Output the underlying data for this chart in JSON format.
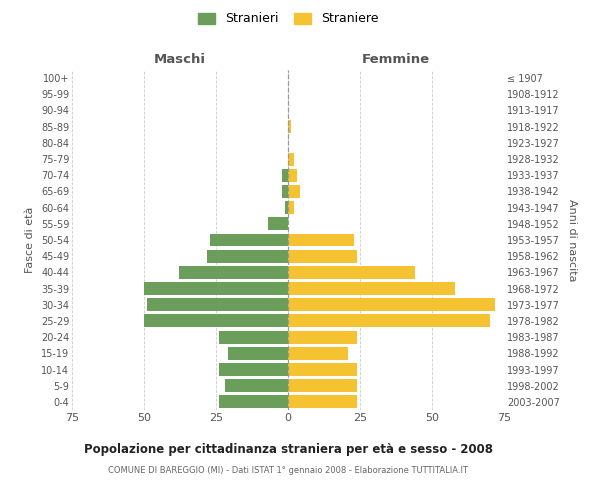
{
  "age_groups": [
    "0-4",
    "5-9",
    "10-14",
    "15-19",
    "20-24",
    "25-29",
    "30-34",
    "35-39",
    "40-44",
    "45-49",
    "50-54",
    "55-59",
    "60-64",
    "65-69",
    "70-74",
    "75-79",
    "80-84",
    "85-89",
    "90-94",
    "95-99",
    "100+"
  ],
  "birth_years": [
    "2003-2007",
    "1998-2002",
    "1993-1997",
    "1988-1992",
    "1983-1987",
    "1978-1982",
    "1973-1977",
    "1968-1972",
    "1963-1967",
    "1958-1962",
    "1953-1957",
    "1948-1952",
    "1943-1947",
    "1938-1942",
    "1933-1937",
    "1928-1932",
    "1923-1927",
    "1918-1922",
    "1913-1917",
    "1908-1912",
    "≤ 1907"
  ],
  "maschi": [
    24,
    22,
    24,
    21,
    24,
    50,
    49,
    50,
    38,
    28,
    27,
    7,
    1,
    2,
    2,
    0,
    0,
    0,
    0,
    0,
    0
  ],
  "femmine": [
    24,
    24,
    24,
    21,
    24,
    70,
    72,
    58,
    44,
    24,
    23,
    0,
    2,
    4,
    3,
    2,
    0,
    1,
    0,
    0,
    0
  ],
  "maschi_color": "#6a9e5a",
  "femmine_color": "#f5c232",
  "title": "Popolazione per cittadinanza straniera per età e sesso - 2008",
  "subtitle": "COMUNE DI BAREGGIO (MI) - Dati ISTAT 1° gennaio 2008 - Elaborazione TUTTITALIA.IT",
  "xlabel_left": "Maschi",
  "xlabel_right": "Femmine",
  "ylabel_left": "Fasce di età",
  "ylabel_right": "Anni di nascita",
  "legend_stranieri": "Stranieri",
  "legend_straniere": "Straniere",
  "xlim": 75,
  "bg_color": "#ffffff",
  "grid_color": "#cccccc",
  "bar_height": 0.8
}
